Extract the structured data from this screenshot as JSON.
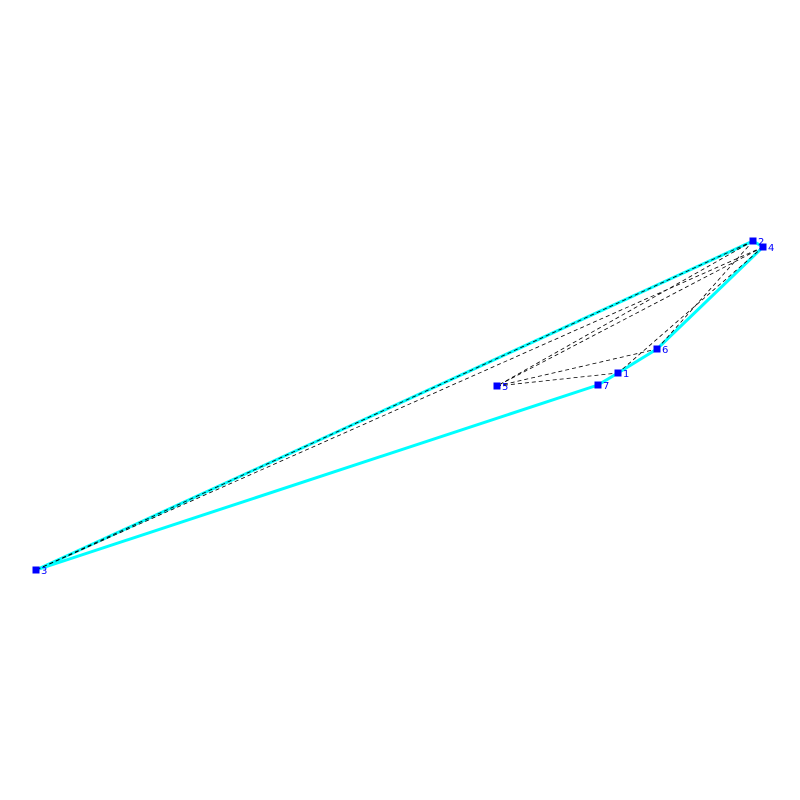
{
  "colors": {
    "background": "#ffffff",
    "hull_edge": "#00ffff",
    "dashed_edge": "#000000",
    "node": "#0000ff",
    "label": "#0000ff"
  },
  "nodes": [
    {
      "id": "1",
      "label": "1"
    },
    {
      "id": "2",
      "label": "2"
    },
    {
      "id": "3",
      "label": "3"
    },
    {
      "id": "4",
      "label": "4"
    },
    {
      "id": "5",
      "label": "5"
    },
    {
      "id": "6",
      "label": "6"
    },
    {
      "id": "7",
      "label": "7"
    }
  ],
  "hull_edges": [
    [
      "2",
      "3"
    ],
    [
      "3",
      "7"
    ],
    [
      "7",
      "1"
    ],
    [
      "1",
      "6"
    ],
    [
      "6",
      "4"
    ],
    [
      "4",
      "2"
    ]
  ],
  "dashed_edges": [
    [
      "2",
      "3"
    ],
    [
      "4",
      "3"
    ],
    [
      "2",
      "5"
    ],
    [
      "4",
      "5"
    ],
    [
      "5",
      "1"
    ],
    [
      "5",
      "6"
    ],
    [
      "2",
      "6"
    ],
    [
      "4",
      "1"
    ]
  ]
}
